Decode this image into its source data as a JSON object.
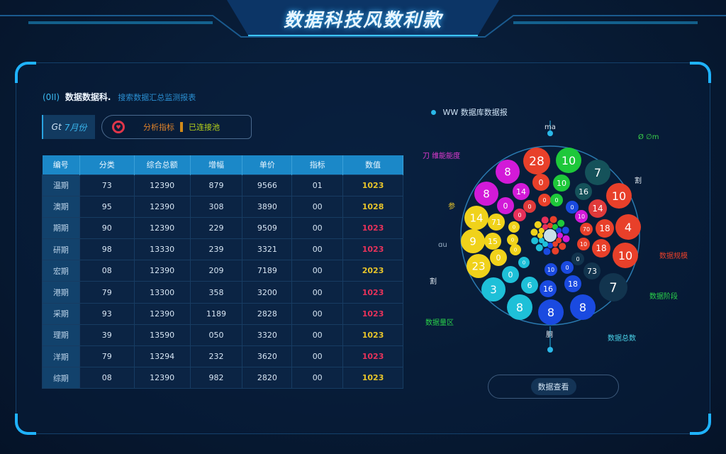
{
  "header": {
    "title": "数据科技风数利款"
  },
  "section": {
    "tag": "(0II)",
    "title": "数据数据科.",
    "subtitle": "搜索数据汇总监测报表"
  },
  "tab": {
    "label_a": "Gt",
    "label_b": "7月份"
  },
  "status": {
    "icon": "heart-badge-icon",
    "label": "分析指标",
    "value": "已连接池",
    "colors": {
      "icon": "#e0364a",
      "label": "#e0832a",
      "value": "#b8d21a"
    }
  },
  "table": {
    "headers": [
      "编号",
      "分类",
      "综合总额",
      "增幅",
      "单价",
      "指标",
      "数值"
    ],
    "rows": [
      {
        "cells": [
          "温期",
          "73",
          "12390",
          "879",
          "9566",
          "01",
          "1023"
        ],
        "tone": "yellow"
      },
      {
        "cells": [
          "澳期",
          "95",
          "12390",
          "308",
          "3890",
          "00",
          "1028"
        ],
        "tone": "yellow"
      },
      {
        "cells": [
          "期期",
          "90",
          "12390",
          "229",
          "9509",
          "00",
          "1023"
        ],
        "tone": "red"
      },
      {
        "cells": [
          "研期",
          "98",
          "13330",
          "239",
          "3321",
          "00",
          "1023"
        ],
        "tone": "red"
      },
      {
        "cells": [
          "宏期",
          "08",
          "12390",
          "209",
          "7189",
          "00",
          "2023"
        ],
        "tone": "yellow"
      },
      {
        "cells": [
          "港期",
          "79",
          "13300",
          "358",
          "3200",
          "00",
          "1023"
        ],
        "tone": "red"
      },
      {
        "cells": [
          "采期",
          "93",
          "12390",
          "1189",
          "2828",
          "00",
          "1023"
        ],
        "tone": "red"
      },
      {
        "cells": [
          "理期",
          "39",
          "13590",
          "050",
          "3320",
          "00",
          "1023"
        ],
        "tone": "yellow"
      },
      {
        "cells": [
          "洋期",
          "79",
          "13294",
          "232",
          "3620",
          "00",
          "1023"
        ],
        "tone": "red"
      },
      {
        "cells": [
          "综期",
          "08",
          "12390",
          "982",
          "2820",
          "00",
          "1023"
        ],
        "tone": "yellow"
      }
    ],
    "tone_colors": {
      "yellow": "#e8c52a",
      "red": "#e8325a"
    }
  },
  "chart_data": {
    "type": "bubble-radial",
    "title": "WW 数据库数据报",
    "annotations": [
      {
        "text": "ma",
        "color": "#dfe8f0"
      },
      {
        "text": "Ø ∅m",
        "color": "#3ad24a"
      },
      {
        "text": "刀 维能能度",
        "color": "#e03ad0"
      },
      {
        "text": "割",
        "color": "#dfe8f0"
      },
      {
        "text": "参",
        "color": "#e8c52a"
      },
      {
        "text": "ɑu",
        "color": "#9ab0c4"
      },
      {
        "text": "数据规模",
        "color": "#e8402a"
      },
      {
        "text": "割",
        "color": "#dfe8f0"
      },
      {
        "text": "数据阶段",
        "color": "#2ad24a"
      },
      {
        "text": "数据量区",
        "color": "#2ad24a"
      },
      {
        "text": "胴",
        "color": "#dfe8f0"
      },
      {
        "text": "数据总数",
        "color": "#4ad2e8"
      }
    ],
    "bubbles": [
      {
        "value": "28",
        "color": "#e8402a"
      },
      {
        "value": "10",
        "color": "#1ec83a"
      },
      {
        "value": "7",
        "color": "#15525a"
      },
      {
        "value": "8",
        "color": "#d21ad8"
      },
      {
        "value": "8",
        "color": "#d21ad8"
      },
      {
        "value": "10",
        "color": "#e8402a"
      },
      {
        "value": "14",
        "color": "#f0d21a"
      },
      {
        "value": "4",
        "color": "#e8402a"
      },
      {
        "value": "9",
        "color": "#f0d21a"
      },
      {
        "value": "10",
        "color": "#e8402a"
      },
      {
        "value": "23",
        "color": "#f0d21a"
      },
      {
        "value": "7",
        "color": "#12344e"
      },
      {
        "value": "3",
        "color": "#1ec0d8"
      },
      {
        "value": "8",
        "color": "#1ec0d8"
      },
      {
        "value": "8",
        "color": "#1a4ae0"
      },
      {
        "value": "8",
        "color": "#1a4ae0"
      },
      {
        "value": "0",
        "color": "#e8402a"
      },
      {
        "value": "10",
        "color": "#1ec83a"
      },
      {
        "value": "16",
        "color": "#15525a"
      },
      {
        "value": "14",
        "color": "#d21ad8"
      },
      {
        "value": "0",
        "color": "#d21ad8"
      },
      {
        "value": "14",
        "color": "#e03a3a"
      },
      {
        "value": "18",
        "color": "#e8402a"
      },
      {
        "value": "71",
        "color": "#f0d21a"
      },
      {
        "value": "15",
        "color": "#f0d21a"
      },
      {
        "value": "18",
        "color": "#e8402a"
      },
      {
        "value": "0",
        "color": "#f0d21a"
      },
      {
        "value": "73",
        "color": "#12344e"
      },
      {
        "value": "0",
        "color": "#1ec0d8"
      },
      {
        "value": "6",
        "color": "#1ec0d8"
      },
      {
        "value": "16",
        "color": "#1a4ae0"
      },
      {
        "value": "18",
        "color": "#1a4ae0"
      },
      {
        "value": "0",
        "color": "#e8402a"
      },
      {
        "value": "0",
        "color": "#1ec83a"
      },
      {
        "value": "0",
        "color": "#1a4ae0"
      },
      {
        "value": "0",
        "color": "#e03a3a"
      },
      {
        "value": "0",
        "color": "#e8305a"
      },
      {
        "value": "10",
        "color": "#d21ad8"
      },
      {
        "value": "0",
        "color": "#f0d21a"
      },
      {
        "value": "70",
        "color": "#e8402a"
      },
      {
        "value": "0",
        "color": "#f0d21a"
      },
      {
        "value": "10",
        "color": "#e8402a"
      },
      {
        "value": "0",
        "color": "#f0d21a"
      },
      {
        "value": "0",
        "color": "#12344e"
      },
      {
        "value": "0",
        "color": "#1ec0d8"
      },
      {
        "value": "10",
        "color": "#1a4ae0"
      },
      {
        "value": "0",
        "color": "#1a4ae0"
      }
    ]
  },
  "button": {
    "label": "数据查看"
  }
}
